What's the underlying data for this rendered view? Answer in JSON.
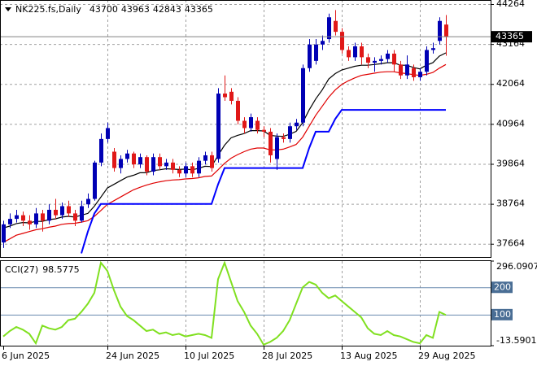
{
  "chart_data": [
    {
      "type": "candlestick",
      "title": "NK225.fs,Daily",
      "categories": [
        "6 Jun 2025",
        null,
        null,
        null,
        null,
        null,
        null,
        null,
        null,
        null,
        null,
        null,
        null,
        null,
        null,
        null,
        "24 Jun 2025",
        null,
        null,
        null,
        null,
        null,
        null,
        null,
        null,
        null,
        null,
        null,
        "10 Jul 2025",
        null,
        null,
        null,
        null,
        null,
        null,
        null,
        null,
        null,
        null,
        null,
        "28 Jul 2025",
        null,
        null,
        null,
        null,
        null,
        null,
        null,
        null,
        null,
        null,
        null,
        "13 Aug 2025",
        null,
        null,
        null,
        null,
        null,
        null,
        null,
        null,
        null,
        null,
        null,
        "29 Aug 2025",
        null,
        null,
        null,
        null
      ],
      "opens": [
        37700,
        38200,
        38350,
        38450,
        38300,
        38200,
        38500,
        38300,
        38600,
        38450,
        38700,
        38500,
        38300,
        38750,
        38900,
        39900,
        40550,
        40200,
        39750,
        40000,
        40150,
        39850,
        40050,
        39650,
        40050,
        39800,
        39900,
        39700,
        39600,
        39800,
        39600,
        39950,
        40100,
        40000,
        41800,
        41850,
        41600,
        41050,
        40850,
        41050,
        40800,
        40750,
        40000,
        40600,
        40550,
        40900,
        41000,
        42500,
        42700,
        43150,
        43300,
        43800,
        43500,
        43000,
        42800,
        43100,
        42800,
        42650,
        42700,
        42750,
        42900,
        42600,
        42300,
        42500,
        42250,
        42400,
        43000,
        43250,
        43700
      ],
      "highs": [
        38300,
        38500,
        38600,
        38550,
        38450,
        38650,
        38600,
        38750,
        38900,
        38800,
        38850,
        38600,
        38850,
        39050,
        39950,
        40700,
        41000,
        40300,
        40100,
        40250,
        40200,
        40150,
        40100,
        40150,
        40150,
        40000,
        40000,
        39800,
        39900,
        39900,
        40050,
        40200,
        40200,
        41950,
        42300,
        41950,
        41700,
        41150,
        41250,
        41150,
        40900,
        40850,
        40700,
        40700,
        41000,
        41100,
        42600,
        43300,
        43300,
        43400,
        44000,
        44100,
        43600,
        43100,
        43200,
        43200,
        42900,
        42800,
        42850,
        43000,
        43000,
        42700,
        42850,
        42600,
        42500,
        43100,
        43200,
        43900,
        43963
      ],
      "lows": [
        37550,
        38100,
        38250,
        38150,
        38050,
        38100,
        38000,
        38200,
        38350,
        38350,
        38400,
        38150,
        38250,
        38650,
        38850,
        39800,
        40450,
        39650,
        39600,
        39900,
        39750,
        39750,
        39550,
        39550,
        39700,
        39700,
        39600,
        39500,
        39500,
        39500,
        39500,
        39850,
        39650,
        39900,
        41600,
        41500,
        40950,
        40700,
        40750,
        40700,
        40600,
        39900,
        39700,
        40450,
        40450,
        40800,
        40900,
        42400,
        42600,
        43000,
        43200,
        43400,
        42900,
        42700,
        42700,
        42600,
        42500,
        42400,
        42600,
        42650,
        42400,
        42200,
        42200,
        42150,
        42150,
        42300,
        42900,
        43150,
        42843
      ],
      "closes": [
        38200,
        38350,
        38450,
        38300,
        38200,
        38500,
        38300,
        38600,
        38450,
        38700,
        38500,
        38300,
        38700,
        38900,
        39900,
        40550,
        40850,
        39750,
        40000,
        40150,
        39850,
        40050,
        39650,
        40050,
        39800,
        39900,
        39700,
        39600,
        39800,
        39600,
        39950,
        40100,
        39750,
        41800,
        41700,
        41600,
        41050,
        40850,
        41150,
        40800,
        40750,
        40100,
        40600,
        40550,
        40900,
        41000,
        42500,
        43150,
        43150,
        43250,
        43900,
        43500,
        43000,
        42800,
        43100,
        42800,
        42650,
        42700,
        42750,
        42900,
        42600,
        42300,
        42600,
        42250,
        42400,
        43000,
        43050,
        43800,
        43365
      ],
      "up_color": "#0000b4",
      "down_color": "#e01818",
      "lines": [
        {
          "color": "#000000",
          "values": [
            38100,
            38150,
            38220,
            38250,
            38240,
            38280,
            38280,
            38330,
            38350,
            38400,
            38420,
            38400,
            38450,
            38500,
            38700,
            38950,
            39200,
            39300,
            39400,
            39500,
            39550,
            39620,
            39620,
            39680,
            39700,
            39730,
            39720,
            39710,
            39720,
            39700,
            39740,
            39800,
            39790,
            40100,
            40380,
            40580,
            40650,
            40700,
            40780,
            40780,
            40770,
            40650,
            40630,
            40620,
            40680,
            40760,
            41000,
            41350,
            41650,
            41900,
            42200,
            42350,
            42450,
            42500,
            42550,
            42580,
            42580,
            42600,
            42620,
            42650,
            42650,
            42580,
            42580,
            42520,
            42480,
            42580,
            42650,
            42830,
            42920
          ]
        },
        {
          "color": "#e00000",
          "values": [
            37700,
            37800,
            37900,
            37950,
            38000,
            38050,
            38080,
            38120,
            38150,
            38200,
            38220,
            38230,
            38260,
            38300,
            38420,
            38580,
            38750,
            38850,
            38950,
            39050,
            39150,
            39220,
            39280,
            39330,
            39370,
            39400,
            39420,
            39430,
            39450,
            39460,
            39480,
            39520,
            39530,
            39700,
            39880,
            40020,
            40120,
            40200,
            40270,
            40300,
            40300,
            40250,
            40250,
            40270,
            40330,
            40400,
            40600,
            40900,
            41200,
            41450,
            41700,
            41900,
            42050,
            42150,
            42230,
            42300,
            42330,
            42360,
            42390,
            42400,
            42400,
            42370,
            42350,
            42320,
            42300,
            42330,
            42380,
            42500,
            42600
          ]
        },
        {
          "color": "#0000ff",
          "values": [
            null,
            null,
            null,
            null,
            null,
            null,
            null,
            null,
            null,
            null,
            null,
            null,
            37400,
            38000,
            38500,
            38760,
            38760,
            38760,
            38760,
            38760,
            38760,
            38760,
            38760,
            38760,
            38760,
            38760,
            38760,
            38760,
            38760,
            38760,
            38760,
            38760,
            38760,
            39300,
            39750,
            39750,
            39750,
            39750,
            39750,
            39750,
            39750,
            39750,
            39750,
            39750,
            39750,
            39750,
            39750,
            40300,
            40750,
            40750,
            40750,
            41100,
            41350,
            41350,
            41350,
            41350,
            41350,
            41350,
            41350,
            41350,
            41350,
            41350,
            41350,
            41350,
            41350,
            41350,
            41350,
            41350,
            41350
          ]
        }
      ],
      "ylim": [
        37300,
        44376
      ],
      "yticks": [
        37664,
        38764,
        39864,
        40964,
        42064,
        43164,
        44264
      ],
      "grid": true
    },
    {
      "type": "line",
      "title": "CCI(27)",
      "color": "#80e020",
      "values": [
        20,
        40,
        55,
        45,
        30,
        -5,
        60,
        50,
        45,
        55,
        80,
        85,
        110,
        140,
        180,
        290,
        260,
        190,
        130,
        95,
        80,
        60,
        40,
        45,
        30,
        35,
        25,
        30,
        20,
        25,
        30,
        25,
        15,
        230,
        290,
        220,
        150,
        110,
        60,
        30,
        -10,
        0,
        15,
        40,
        80,
        140,
        200,
        220,
        210,
        180,
        160,
        170,
        150,
        130,
        110,
        90,
        50,
        30,
        25,
        40,
        25,
        20,
        10,
        0,
        -5,
        25,
        15,
        110,
        98.5775
      ],
      "ylim": [
        -13.5901,
        296.0907
      ],
      "yticks": [
        -13.5901,
        100,
        200,
        296.0907
      ]
    }
  ]
}
